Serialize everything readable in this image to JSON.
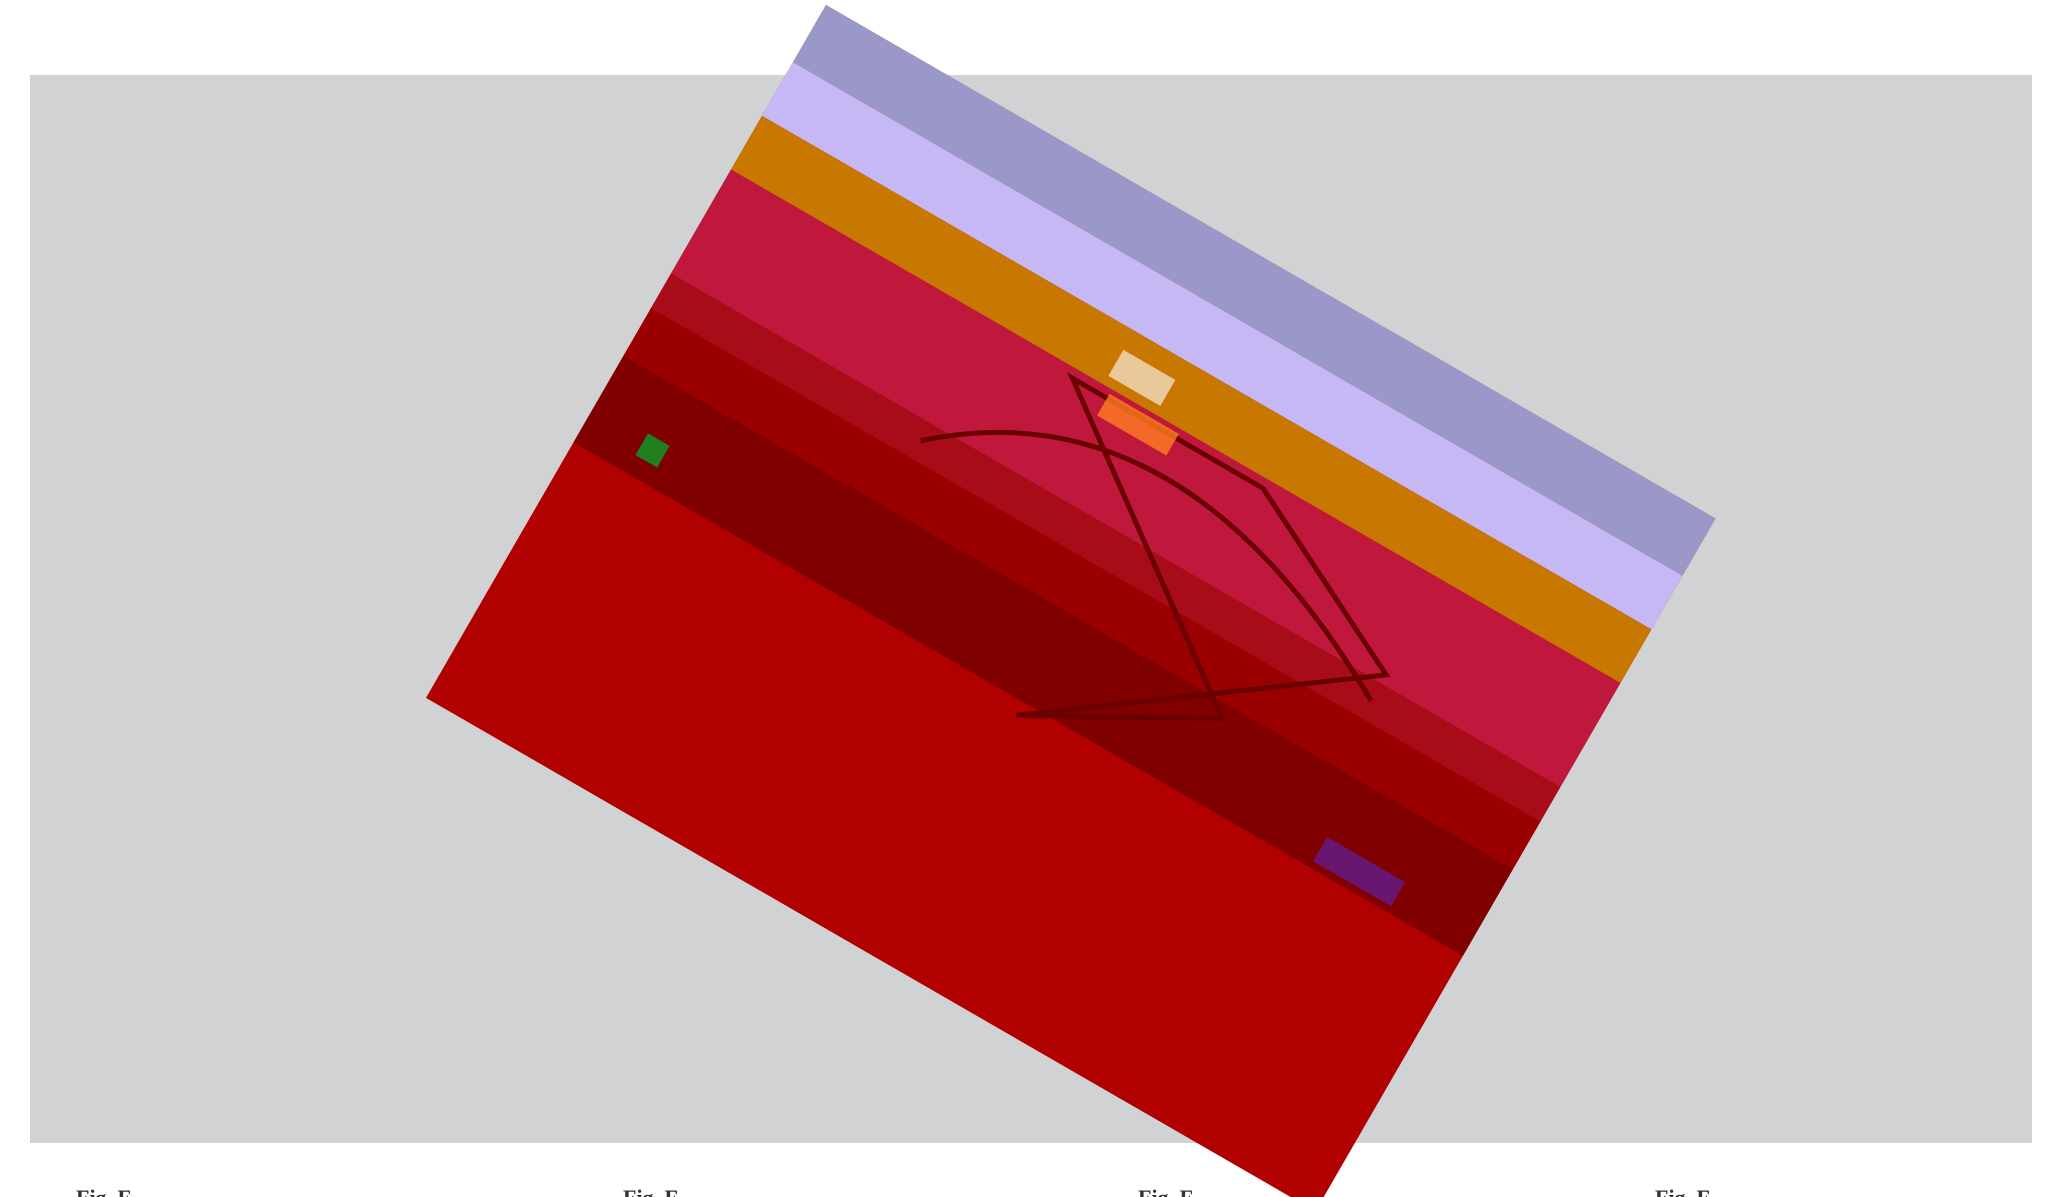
{
  "captions": [
    "Fig. F",
    "Fig. F",
    "Fig. F",
    "Fig. F"
  ]
}
